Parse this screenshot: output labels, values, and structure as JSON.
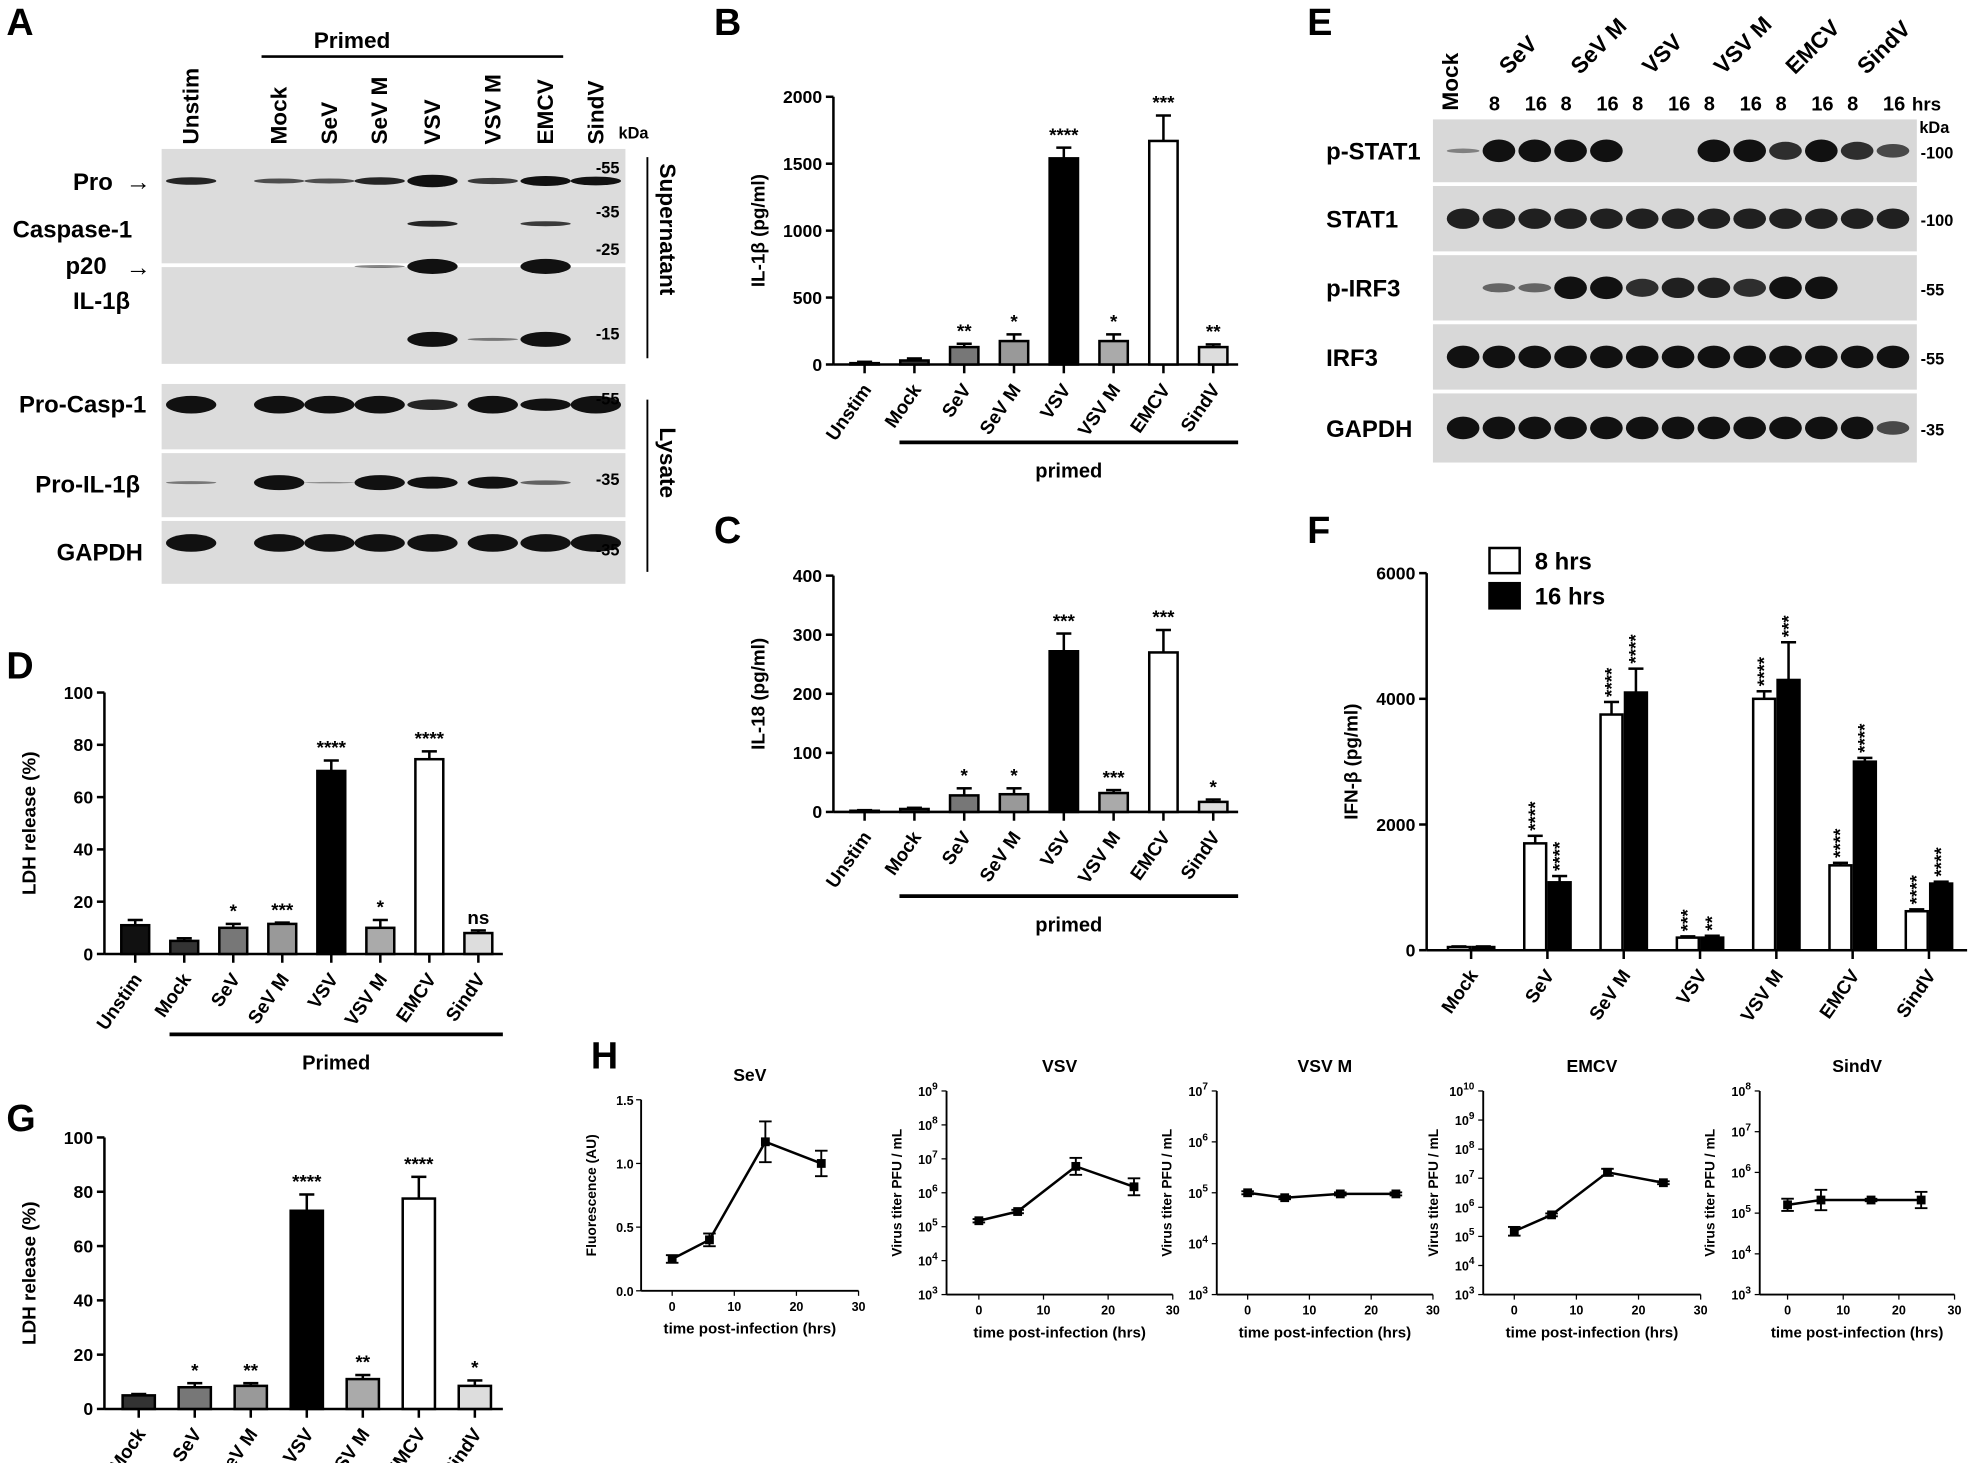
{
  "panels": {
    "A": "A",
    "B": "B",
    "C": "C",
    "D": "D",
    "E": "E",
    "F": "F",
    "G": "G",
    "H": "H"
  },
  "blot_A": {
    "header": "Primed",
    "lanes": [
      "Unstim",
      "Mock",
      "SeV",
      "SeV M",
      "VSV",
      "VSV M",
      "EMCV",
      "SindV"
    ],
    "kda": "kDa",
    "rows": [
      "Pro",
      "Caspase-1",
      "p20",
      "IL-1β",
      "Pro-Casp-1",
      "Pro-IL-1β",
      "GAPDH"
    ],
    "markers": [
      "-55",
      "-35",
      "-25",
      "-15",
      "-55",
      "-35",
      "-35"
    ],
    "groups": [
      "Supernatant",
      "Lysate"
    ]
  },
  "blot_E": {
    "lanes": [
      "Mock",
      "SeV",
      "SeV M",
      "VSV",
      "VSV M",
      "EMCV",
      "SindV"
    ],
    "times": [
      "8",
      "16",
      "8",
      "16",
      "8",
      "16",
      "8",
      "16",
      "8",
      "16",
      "8",
      "16"
    ],
    "time_unit": "hrs",
    "kda": "kDa",
    "rows": [
      "p-STAT1",
      "STAT1",
      "p-IRF3",
      "IRF3",
      "GAPDH"
    ],
    "markers": [
      "-100",
      "-100",
      "-55",
      "-55",
      "-35"
    ]
  },
  "chart_data": [
    {
      "panel": "B",
      "type": "bar",
      "ylabel": "IL-1β (pg/ml)",
      "ylim": [
        0,
        2000
      ],
      "yticks": [
        "0",
        "500",
        "1000",
        "1500",
        "2000"
      ],
      "categories": [
        "Unstim",
        "Mock",
        "SeV",
        "SeV M",
        "VSV",
        "VSV M",
        "EMCV",
        "SindV"
      ],
      "values": [
        10,
        30,
        130,
        175,
        1540,
        175,
        1670,
        130
      ],
      "errors": [
        10,
        15,
        25,
        50,
        80,
        50,
        190,
        20
      ],
      "significance": [
        "",
        "",
        "**",
        "*",
        "****",
        "*",
        "***",
        "**"
      ],
      "colors": [
        "#111111",
        "#333333",
        "#777777",
        "#999999",
        "#000000",
        "#aaaaaa",
        "#ffffff",
        "#dddddd"
      ],
      "group_label": "primed"
    },
    {
      "panel": "C",
      "type": "bar",
      "ylabel": "IL-18 (pg/ml)",
      "ylim": [
        0,
        400
      ],
      "yticks": [
        "0",
        "100",
        "200",
        "300",
        "400"
      ],
      "categories": [
        "Unstim",
        "Mock",
        "SeV",
        "SeV M",
        "VSV",
        "VSV M",
        "EMCV",
        "SindV"
      ],
      "values": [
        2,
        5,
        28,
        30,
        272,
        32,
        270,
        17
      ],
      "errors": [
        1,
        2,
        12,
        10,
        30,
        5,
        38,
        4
      ],
      "significance": [
        "",
        "",
        "*",
        "*",
        "***",
        "***",
        "***",
        "*"
      ],
      "colors": [
        "#111111",
        "#333333",
        "#777777",
        "#999999",
        "#000000",
        "#aaaaaa",
        "#ffffff",
        "#dddddd"
      ],
      "group_label": "primed"
    },
    {
      "panel": "D",
      "type": "bar",
      "ylabel": "LDH release (%)",
      "ylim": [
        0,
        100
      ],
      "yticks": [
        "0",
        "20",
        "40",
        "60",
        "80",
        "100"
      ],
      "categories": [
        "Unstim",
        "Mock",
        "SeV",
        "SeV M",
        "VSV",
        "VSV M",
        "EMCV",
        "SindV"
      ],
      "values": [
        11,
        5,
        10,
        11.5,
        70,
        10,
        74.5,
        8
      ],
      "errors": [
        2,
        1,
        1.5,
        0.5,
        4,
        3,
        3,
        1
      ],
      "significance": [
        "",
        "",
        "*",
        "***",
        "****",
        "*",
        "****",
        "ns"
      ],
      "colors": [
        "#111111",
        "#333333",
        "#777777",
        "#999999",
        "#000000",
        "#aaaaaa",
        "#ffffff",
        "#dddddd"
      ],
      "group_label": "Primed"
    },
    {
      "panel": "F",
      "type": "bar",
      "ylabel": "IFN-β (pg/ml)",
      "ylim": [
        0,
        6000
      ],
      "yticks": [
        "0",
        "2000",
        "4000",
        "6000"
      ],
      "categories": [
        "Mock",
        "SeV",
        "SeV M",
        "VSV",
        "VSV M",
        "EMCV",
        "SindV"
      ],
      "legend_position": "top-left",
      "series": [
        {
          "name": "8 hrs",
          "color": "#ffffff",
          "values": [
            50,
            1700,
            3750,
            200,
            4000,
            1350,
            620
          ],
          "errors": [
            10,
            120,
            200,
            20,
            120,
            40,
            30
          ],
          "significance": [
            "",
            "****",
            "****",
            "***",
            "****",
            "****",
            "****"
          ]
        },
        {
          "name": "16 hrs",
          "color": "#000000",
          "values": [
            50,
            1080,
            4100,
            200,
            4300,
            3000,
            1060
          ],
          "errors": [
            10,
            100,
            380,
            30,
            600,
            60,
            30
          ],
          "significance": [
            "",
            "****",
            "****",
            "**",
            "***",
            "****",
            "****"
          ]
        }
      ]
    },
    {
      "panel": "G",
      "type": "bar",
      "ylabel": "LDH release (%)",
      "ylim": [
        0,
        100
      ],
      "yticks": [
        "0",
        "20",
        "40",
        "60",
        "80",
        "100"
      ],
      "categories": [
        "Mock",
        "SeV",
        "SeV M",
        "VSV",
        "VSV M",
        "EMCV",
        "SindV"
      ],
      "values": [
        5,
        8,
        8.5,
        73,
        11,
        77.5,
        8.5
      ],
      "errors": [
        0.5,
        1.5,
        1,
        6,
        1.5,
        8,
        2
      ],
      "significance": [
        "",
        "*",
        "**",
        "****",
        "**",
        "****",
        "*"
      ],
      "colors": [
        "#333333",
        "#777777",
        "#999999",
        "#000000",
        "#aaaaaa",
        "#ffffff",
        "#dddddd"
      ]
    },
    {
      "panel": "H",
      "type": "line",
      "title": "SeV",
      "xlabel": "time post-infection (hrs)",
      "ylabel": "Fluorescence (AU)",
      "xlim": [
        -5,
        30
      ],
      "xticks": [
        "0",
        "10",
        "20",
        "30"
      ],
      "ylim": [
        0,
        1.5
      ],
      "yticks": [
        "0.0",
        "0.5",
        "1.0",
        "1.5"
      ],
      "log": false,
      "x": [
        0,
        6,
        15,
        24
      ],
      "y": [
        0.25,
        0.4,
        1.17,
        1.0
      ],
      "errors": [
        0.03,
        0.05,
        0.16,
        0.1
      ]
    },
    {
      "panel": "H",
      "type": "line",
      "title": "VSV",
      "xlabel": "time post-infection (hrs)",
      "ylabel": "Virus titer PFU / mL",
      "xlim": [
        -5,
        30
      ],
      "xticks": [
        "0",
        "10",
        "20",
        "30"
      ],
      "ylim": [
        1000.0,
        1000000000.0
      ],
      "yticks": [
        "3",
        "4",
        "5",
        "6",
        "7",
        "8",
        "9"
      ],
      "log": true,
      "x": [
        0,
        6,
        15,
        24
      ],
      "y": [
        150000,
        280000,
        6000000,
        1500000
      ],
      "errors_log": [
        0.05,
        0.05,
        0.25,
        0.25
      ]
    },
    {
      "panel": "H",
      "type": "line",
      "title": "VSV M",
      "xlabel": "time post-infection (hrs)",
      "ylabel": "Virus titer PFU / mL",
      "xlim": [
        -5,
        30
      ],
      "xticks": [
        "0",
        "10",
        "20",
        "30"
      ],
      "ylim": [
        1000.0,
        10000000.0
      ],
      "yticks": [
        "3",
        "4",
        "5",
        "6",
        "7"
      ],
      "log": true,
      "x": [
        0,
        6,
        15,
        24
      ],
      "y": [
        100000,
        80000,
        95000,
        95000
      ],
      "errors_log": [
        0.03,
        0.03,
        0.03,
        0.03
      ]
    },
    {
      "panel": "H",
      "type": "line",
      "title": "EMCV",
      "xlabel": "time post-infection (hrs)",
      "ylabel": "Virus titer PFU / mL",
      "xlim": [
        -5,
        30
      ],
      "xticks": [
        "0",
        "10",
        "20",
        "30"
      ],
      "ylim": [
        1000.0,
        10000000000.0
      ],
      "yticks": [
        "3",
        "4",
        "5",
        "6",
        "7",
        "8",
        "9",
        "10"
      ],
      "log": true,
      "x": [
        0,
        6,
        15,
        24
      ],
      "y": [
        150000,
        550000,
        16000000,
        7000000
      ],
      "errors_log": [
        0.15,
        0.05,
        0.12,
        0.05
      ]
    },
    {
      "panel": "H",
      "type": "line",
      "title": "SindV",
      "xlabel": "time post-infection (hrs)",
      "ylabel": "Virus titer PFU / mL",
      "xlim": [
        -5,
        30
      ],
      "xticks": [
        "0",
        "10",
        "20",
        "30"
      ],
      "ylim": [
        1000.0,
        100000000.0
      ],
      "yticks": [
        "3",
        "4",
        "5",
        "6",
        "7",
        "8"
      ],
      "log": true,
      "x": [
        0,
        6,
        15,
        24
      ],
      "y": [
        160000,
        210000,
        210000,
        210000
      ],
      "errors_log": [
        0.15,
        0.25,
        0.03,
        0.2
      ]
    }
  ]
}
